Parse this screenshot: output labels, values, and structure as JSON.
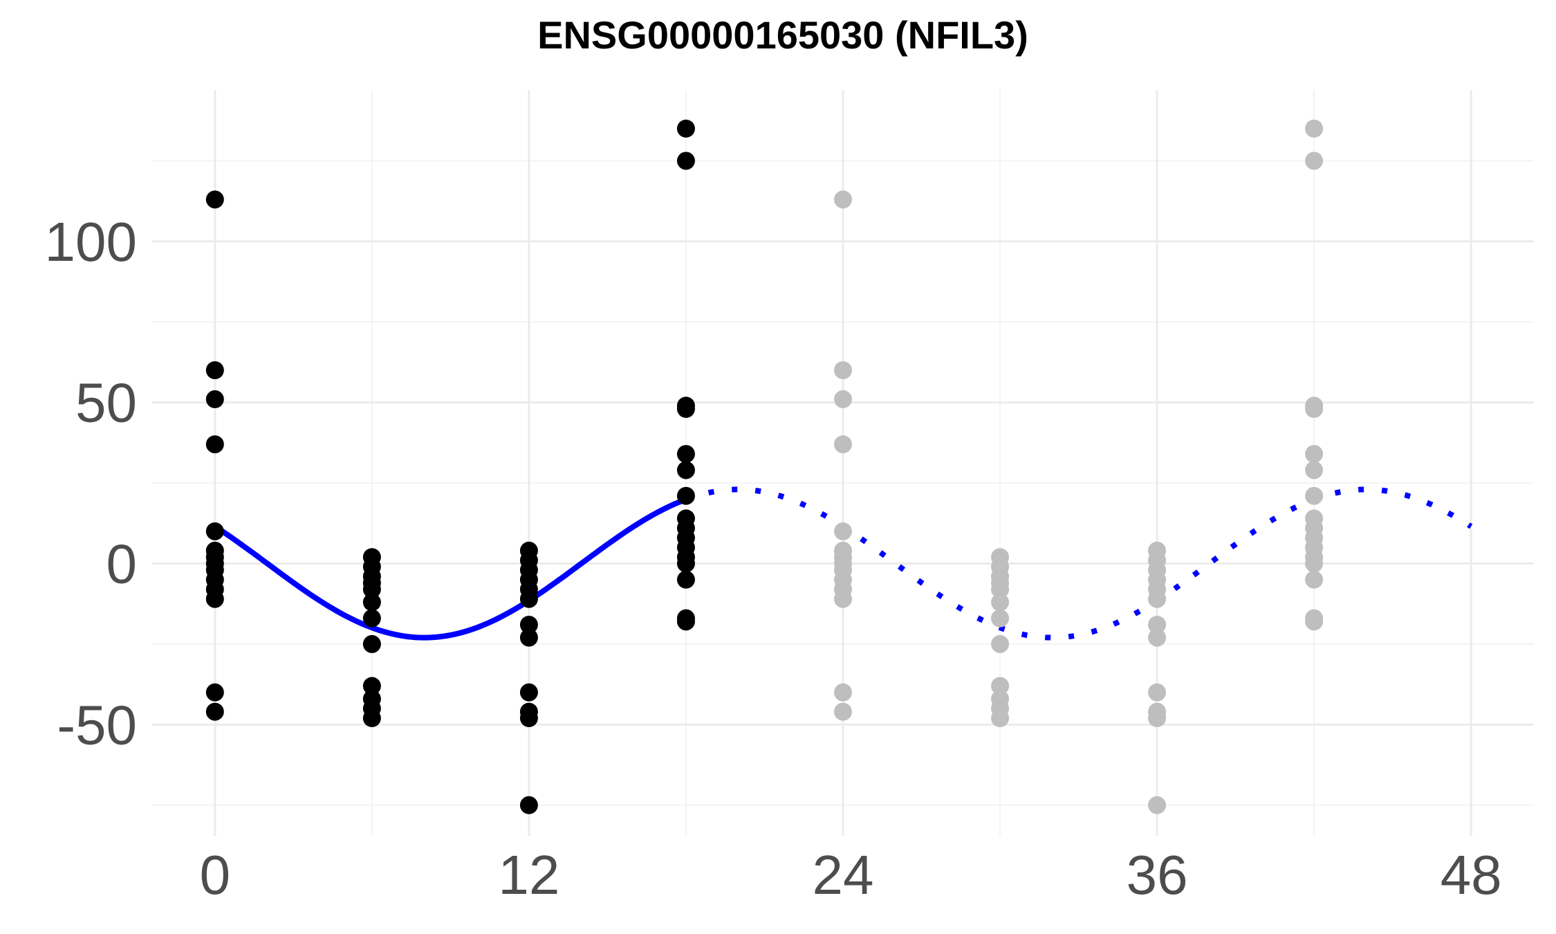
{
  "chart_data": {
    "type": "scatter",
    "title": "ENSG00000165030 (NFIL3)",
    "xlabel": "",
    "ylabel": "",
    "xlim": [
      -2.4,
      50.4
    ],
    "ylim": [
      -84.5,
      147
    ],
    "x_ticks": [
      0,
      12,
      24,
      36,
      48
    ],
    "y_ticks": [
      -50,
      0,
      50,
      100
    ],
    "grid": true,
    "colors": {
      "observed": "#000000",
      "replicate": "#bebebe",
      "fit": "#0000ff"
    },
    "series": [
      {
        "style": "points-black",
        "points": [
          [
            0,
            113
          ],
          [
            0,
            60
          ],
          [
            0,
            51
          ],
          [
            0,
            37
          ],
          [
            0,
            10
          ],
          [
            0,
            4
          ],
          [
            0,
            2
          ],
          [
            0,
            0
          ],
          [
            0,
            -2
          ],
          [
            0,
            -5
          ],
          [
            0,
            -8
          ],
          [
            0,
            -11
          ],
          [
            0,
            -40
          ],
          [
            0,
            -46
          ],
          [
            6,
            2
          ],
          [
            6,
            -1
          ],
          [
            6,
            -4
          ],
          [
            6,
            -6
          ],
          [
            6,
            -8
          ],
          [
            6,
            -12
          ],
          [
            6,
            -17
          ],
          [
            6,
            -25
          ],
          [
            6,
            -38
          ],
          [
            6,
            -42
          ],
          [
            6,
            -45
          ],
          [
            6,
            -48
          ],
          [
            12,
            4
          ],
          [
            12,
            1
          ],
          [
            12,
            -2
          ],
          [
            12,
            -5
          ],
          [
            12,
            -8
          ],
          [
            12,
            -11
          ],
          [
            12,
            -19
          ],
          [
            12,
            -23
          ],
          [
            12,
            -40
          ],
          [
            12,
            -46
          ],
          [
            12,
            -48
          ],
          [
            12,
            -75
          ],
          [
            18,
            135
          ],
          [
            18,
            125
          ],
          [
            18,
            49
          ],
          [
            18,
            48
          ],
          [
            18,
            34
          ],
          [
            18,
            29
          ],
          [
            18,
            21
          ],
          [
            18,
            14
          ],
          [
            18,
            11
          ],
          [
            18,
            8
          ],
          [
            18,
            5
          ],
          [
            18,
            2
          ],
          [
            18,
            0
          ],
          [
            18,
            -5
          ],
          [
            18,
            -17
          ],
          [
            18,
            -18
          ]
        ]
      },
      {
        "style": "points-grey",
        "points": [
          [
            24,
            113
          ],
          [
            24,
            60
          ],
          [
            24,
            51
          ],
          [
            24,
            37
          ],
          [
            24,
            10
          ],
          [
            24,
            4
          ],
          [
            24,
            2
          ],
          [
            24,
            0
          ],
          [
            24,
            -2
          ],
          [
            24,
            -5
          ],
          [
            24,
            -8
          ],
          [
            24,
            -11
          ],
          [
            24,
            -40
          ],
          [
            24,
            -46
          ],
          [
            30,
            2
          ],
          [
            30,
            -1
          ],
          [
            30,
            -4
          ],
          [
            30,
            -6
          ],
          [
            30,
            -8
          ],
          [
            30,
            -12
          ],
          [
            30,
            -17
          ],
          [
            30,
            -25
          ],
          [
            30,
            -38
          ],
          [
            30,
            -42
          ],
          [
            30,
            -45
          ],
          [
            30,
            -48
          ],
          [
            36,
            4
          ],
          [
            36,
            1
          ],
          [
            36,
            -2
          ],
          [
            36,
            -5
          ],
          [
            36,
            -8
          ],
          [
            36,
            -11
          ],
          [
            36,
            -19
          ],
          [
            36,
            -23
          ],
          [
            36,
            -40
          ],
          [
            36,
            -46
          ],
          [
            36,
            -48
          ],
          [
            36,
            -75
          ],
          [
            42,
            135
          ],
          [
            42,
            125
          ],
          [
            42,
            49
          ],
          [
            42,
            48
          ],
          [
            42,
            34
          ],
          [
            42,
            29
          ],
          [
            42,
            21
          ],
          [
            42,
            14
          ],
          [
            42,
            11
          ],
          [
            42,
            8
          ],
          [
            42,
            5
          ],
          [
            42,
            2
          ],
          [
            42,
            0
          ],
          [
            42,
            -5
          ],
          [
            42,
            -17
          ],
          [
            42,
            -18
          ]
        ]
      },
      {
        "style": "curve-solid",
        "x_range": [
          0,
          18
        ],
        "mesor": 0,
        "amplitude": 23,
        "peak_x": 20
      },
      {
        "style": "curve-dotted",
        "x_range": [
          18,
          48
        ],
        "mesor": 0,
        "amplitude": 23,
        "peak_x": 20
      }
    ]
  }
}
